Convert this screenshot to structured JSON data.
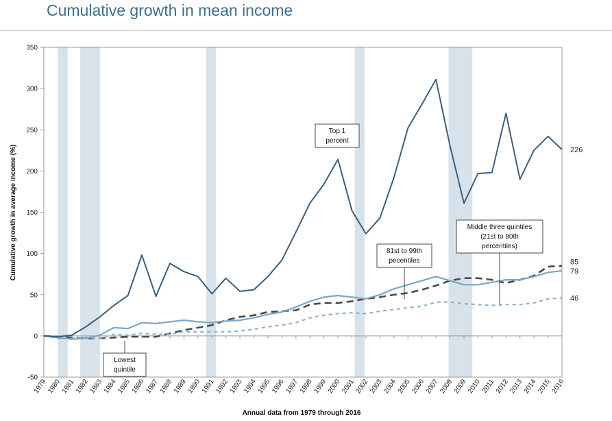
{
  "page": {
    "title": "Cumulative growth in mean income"
  },
  "chart_data": {
    "type": "line",
    "title": "Cumulative growth in mean income",
    "xlabel": "Annual data from 1979 through 2016",
    "ylabel": "Cumulative growth in average income (%)",
    "ylim": [
      -50,
      350
    ],
    "yticks": [
      -50,
      0,
      50,
      100,
      150,
      200,
      250,
      300,
      350
    ],
    "grid": false,
    "x": [
      1979,
      1980,
      1981,
      1982,
      1983,
      1984,
      1985,
      1986,
      1987,
      1988,
      1989,
      1990,
      1991,
      1992,
      1993,
      1994,
      1995,
      1996,
      1997,
      1998,
      1999,
      2000,
      2001,
      2002,
      2003,
      2004,
      2005,
      2006,
      2007,
      2008,
      2009,
      2010,
      2011,
      2012,
      2013,
      2014,
      2015,
      2016
    ],
    "recessions": [
      [
        1980,
        1980.7
      ],
      [
        1981.6,
        1983
      ],
      [
        1990.6,
        1991.3
      ],
      [
        2001.2,
        2001.9
      ],
      [
        2007.9,
        2009.6
      ]
    ],
    "series": [
      {
        "name": "Top 1 percent",
        "color": "#3b5f7e",
        "dash": "solid",
        "values": [
          0,
          -1,
          1,
          11,
          23,
          37,
          49,
          98,
          48,
          88,
          78,
          72,
          51,
          70,
          54,
          56,
          72,
          92,
          126,
          161,
          184,
          214,
          152,
          124,
          143,
          192,
          252,
          281,
          311,
          231,
          161,
          197,
          198,
          270,
          190,
          225,
          242,
          226
        ]
      },
      {
        "name": "81st to 99th pecentiles",
        "color": "#7ba7c2",
        "dash": "solid",
        "values": [
          0,
          -2,
          -4,
          -3,
          1,
          10,
          9,
          16,
          15,
          17,
          19,
          17,
          16,
          18,
          19,
          22,
          26,
          29,
          35,
          42,
          47,
          49,
          47,
          45,
          50,
          57,
          62,
          67,
          72,
          67,
          62,
          62,
          65,
          68,
          68,
          72,
          77,
          79
        ]
      },
      {
        "name": "Middle three quintiles (21st to 80th percentiles)",
        "color": "#4a4a4a",
        "dash": "long",
        "values": [
          0,
          -1,
          -2,
          -3,
          -3,
          -2,
          -1,
          -1,
          -1,
          3,
          7,
          10,
          13,
          19,
          23,
          25,
          29,
          30,
          31,
          38,
          40,
          40,
          42,
          45,
          47,
          50,
          52,
          56,
          61,
          67,
          70,
          70,
          68,
          64,
          68,
          73,
          84,
          85
        ]
      },
      {
        "name": "Lowest quintile",
        "color": "#8fb3cc",
        "dash": "short",
        "values": [
          0,
          -3,
          -3,
          -2,
          -3,
          2,
          1,
          3,
          2,
          2,
          5,
          5,
          5,
          5,
          6,
          8,
          11,
          13,
          16,
          22,
          25,
          27,
          28,
          27,
          30,
          32,
          34,
          36,
          41,
          41,
          39,
          38,
          37,
          38,
          38,
          40,
          45,
          46
        ]
      }
    ],
    "end_labels": [
      "226",
      "85",
      "79",
      "46"
    ],
    "annotations": [
      {
        "lines": [
          "Top 1",
          "percent"
        ]
      },
      {
        "lines": [
          "81st to 99th",
          "pecentiles"
        ]
      },
      {
        "lines": [
          "Middle three quintiles",
          "(21st to 80th",
          "percentiles)"
        ]
      },
      {
        "lines": [
          "Lowest",
          "quintile"
        ]
      }
    ],
    "colors": {
      "recession_band": "#d8e2ea",
      "axis": "#9a9a9a",
      "title": "#3c6e8e"
    }
  }
}
